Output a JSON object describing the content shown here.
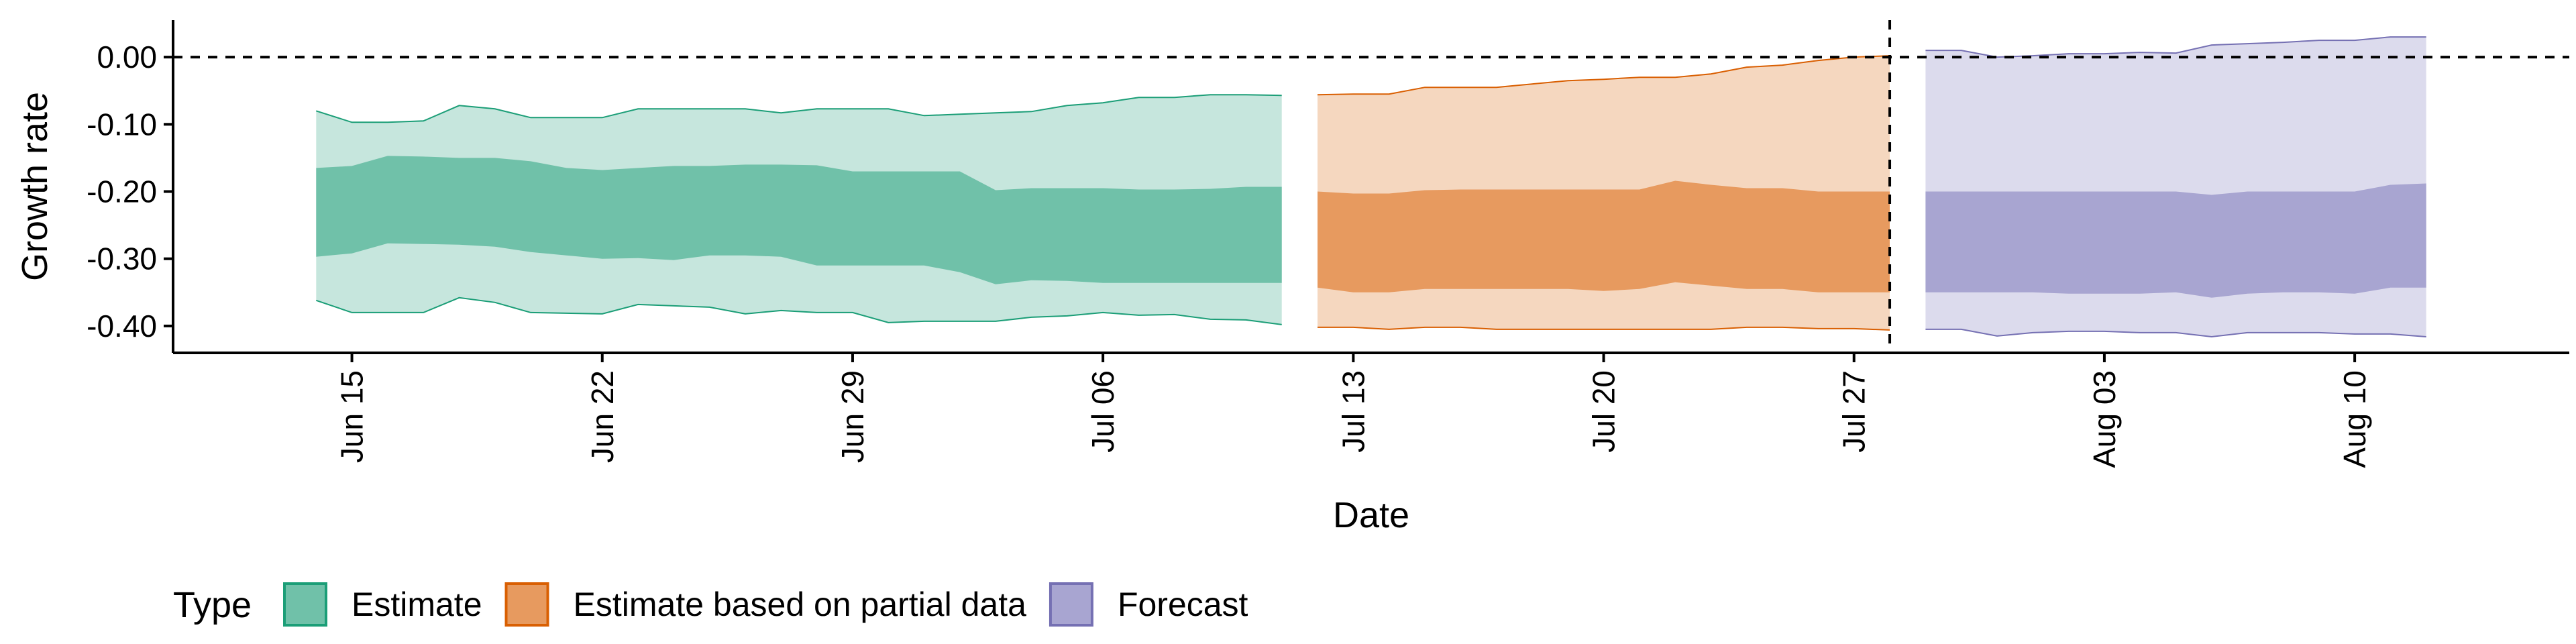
{
  "chart_data": {
    "type": "area",
    "xlabel": "Date",
    "ylabel": "Growth rate",
    "ylim": [
      -0.44,
      0.055
    ],
    "x_range": [
      "2020-06-10",
      "2020-08-16"
    ],
    "y_ticks": [
      0.0,
      -0.1,
      -0.2,
      -0.3,
      -0.4
    ],
    "y_tick_labels": [
      "0.00",
      "-0.10",
      "-0.20",
      "-0.30",
      "-0.40"
    ],
    "x_ticks": [
      "2020-06-15",
      "2020-06-22",
      "2020-06-29",
      "2020-07-06",
      "2020-07-13",
      "2020-07-20",
      "2020-07-27",
      "2020-08-03",
      "2020-08-10"
    ],
    "x_tick_labels": [
      "Jun 15",
      "Jun 22",
      "Jun 29",
      "Jul 06",
      "Jul 13",
      "Jul 20",
      "Jul 27",
      "Aug 03",
      "Aug 10"
    ],
    "reference_lines": {
      "y": 0.0,
      "x": "2020-07-28"
    },
    "grid": false,
    "legend": {
      "title": "Type",
      "position": "bottom-left"
    },
    "series": [
      {
        "name": "Estimate",
        "color": "#1b9e77",
        "fill": "#70c1a9",
        "x": [
          "2020-06-14",
          "2020-06-15",
          "2020-06-16",
          "2020-06-17",
          "2020-06-18",
          "2020-06-19",
          "2020-06-20",
          "2020-06-21",
          "2020-06-22",
          "2020-06-23",
          "2020-06-24",
          "2020-06-25",
          "2020-06-26",
          "2020-06-27",
          "2020-06-28",
          "2020-06-29",
          "2020-06-30",
          "2020-07-01",
          "2020-07-02",
          "2020-07-03",
          "2020-07-04",
          "2020-07-05",
          "2020-07-06",
          "2020-07-07",
          "2020-07-08",
          "2020-07-09",
          "2020-07-10",
          "2020-07-11"
        ],
        "outer_upper": [
          -0.08,
          -0.097,
          -0.097,
          -0.095,
          -0.072,
          -0.077,
          -0.09,
          -0.09,
          -0.09,
          -0.077,
          -0.077,
          -0.077,
          -0.077,
          -0.083,
          -0.077,
          -0.077,
          -0.077,
          -0.087,
          -0.085,
          -0.083,
          -0.081,
          -0.072,
          -0.068,
          -0.06,
          -0.06,
          -0.056,
          -0.056,
          -0.057
        ],
        "inner_upper": [
          -0.165,
          -0.162,
          -0.147,
          -0.148,
          -0.15,
          -0.15,
          -0.155,
          -0.165,
          -0.168,
          -0.165,
          -0.162,
          -0.162,
          -0.16,
          -0.16,
          -0.161,
          -0.17,
          -0.17,
          -0.17,
          -0.17,
          -0.198,
          -0.195,
          -0.195,
          -0.195,
          -0.197,
          -0.197,
          -0.196,
          -0.193,
          -0.193
        ],
        "inner_lower": [
          -0.297,
          -0.292,
          -0.277,
          -0.278,
          -0.279,
          -0.282,
          -0.29,
          -0.295,
          -0.3,
          -0.299,
          -0.302,
          -0.295,
          -0.295,
          -0.297,
          -0.31,
          -0.31,
          -0.31,
          -0.31,
          -0.32,
          -0.338,
          -0.332,
          -0.333,
          -0.336,
          -0.336,
          -0.336,
          -0.336,
          -0.336,
          -0.336
        ],
        "outer_lower": [
          -0.362,
          -0.38,
          -0.38,
          -0.38,
          -0.358,
          -0.365,
          -0.38,
          -0.381,
          -0.382,
          -0.368,
          -0.37,
          -0.372,
          -0.382,
          -0.377,
          -0.38,
          -0.38,
          -0.395,
          -0.393,
          -0.393,
          -0.393,
          -0.387,
          -0.385,
          -0.38,
          -0.384,
          -0.383,
          -0.39,
          -0.391,
          -0.398
        ]
      },
      {
        "name": "Estimate based on partial data",
        "color": "#d95f02",
        "fill": "#e79a5f",
        "x": [
          "2020-07-12",
          "2020-07-13",
          "2020-07-14",
          "2020-07-15",
          "2020-07-16",
          "2020-07-17",
          "2020-07-18",
          "2020-07-19",
          "2020-07-20",
          "2020-07-21",
          "2020-07-22",
          "2020-07-23",
          "2020-07-24",
          "2020-07-25",
          "2020-07-26",
          "2020-07-27",
          "2020-07-28"
        ],
        "outer_upper": [
          -0.056,
          -0.055,
          -0.055,
          -0.045,
          -0.045,
          -0.045,
          -0.04,
          -0.035,
          -0.033,
          -0.03,
          -0.03,
          -0.025,
          -0.015,
          -0.012,
          -0.005,
          0.0,
          0.002
        ],
        "inner_upper": [
          -0.2,
          -0.203,
          -0.203,
          -0.198,
          -0.197,
          -0.197,
          -0.197,
          -0.197,
          -0.197,
          -0.197,
          -0.184,
          -0.19,
          -0.195,
          -0.195,
          -0.2,
          -0.2,
          -0.2
        ],
        "inner_lower": [
          -0.343,
          -0.35,
          -0.35,
          -0.345,
          -0.345,
          -0.345,
          -0.345,
          -0.345,
          -0.348,
          -0.345,
          -0.335,
          -0.34,
          -0.345,
          -0.345,
          -0.35,
          -0.35,
          -0.35
        ],
        "outer_lower": [
          -0.402,
          -0.402,
          -0.405,
          -0.402,
          -0.402,
          -0.405,
          -0.405,
          -0.405,
          -0.405,
          -0.405,
          -0.405,
          -0.405,
          -0.402,
          -0.402,
          -0.404,
          -0.404,
          -0.406
        ]
      },
      {
        "name": "Forecast",
        "color": "#7570b3",
        "fill": "#a8a5d1",
        "x": [
          "2020-07-29",
          "2020-07-30",
          "2020-07-31",
          "2020-08-01",
          "2020-08-02",
          "2020-08-03",
          "2020-08-04",
          "2020-08-05",
          "2020-08-06",
          "2020-08-07",
          "2020-08-08",
          "2020-08-09",
          "2020-08-10",
          "2020-08-11",
          "2020-08-12"
        ],
        "outer_upper": [
          0.01,
          0.01,
          0.0,
          0.002,
          0.005,
          0.005,
          0.007,
          0.006,
          0.018,
          0.02,
          0.022,
          0.025,
          0.025,
          0.03,
          0.03
        ],
        "inner_upper": [
          -0.2,
          -0.2,
          -0.2,
          -0.2,
          -0.2,
          -0.2,
          -0.2,
          -0.2,
          -0.205,
          -0.2,
          -0.2,
          -0.2,
          -0.2,
          -0.19,
          -0.188
        ],
        "inner_lower": [
          -0.35,
          -0.35,
          -0.35,
          -0.35,
          -0.352,
          -0.352,
          -0.352,
          -0.35,
          -0.358,
          -0.352,
          -0.35,
          -0.35,
          -0.352,
          -0.343,
          -0.343
        ],
        "outer_lower": [
          -0.405,
          -0.405,
          -0.415,
          -0.41,
          -0.408,
          -0.408,
          -0.41,
          -0.41,
          -0.416,
          -0.41,
          -0.41,
          -0.41,
          -0.412,
          -0.412,
          -0.416
        ]
      }
    ]
  }
}
